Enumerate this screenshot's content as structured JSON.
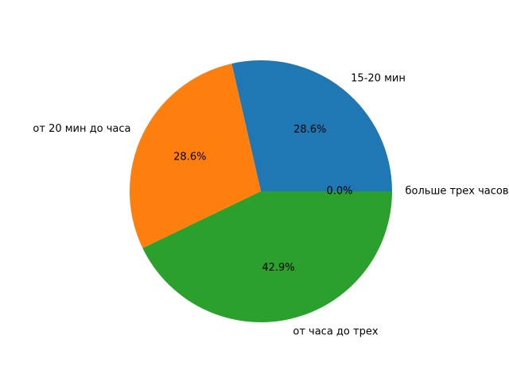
{
  "chart_data": {
    "type": "pie",
    "categories": [
      "15-20 мин",
      "от 20 мин до часа",
      "от часа до трех",
      "больше трех часов"
    ],
    "values": [
      2,
      2,
      3,
      0
    ],
    "percent_labels": [
      "28.6%",
      "28.6%",
      "42.9%",
      "0.0%"
    ],
    "colors": [
      "#1f77b4",
      "#ff7f0e",
      "#2ca02c",
      "#d62728"
    ],
    "start_angle_deg": 0,
    "direction": "counterclockwise",
    "title": "",
    "legend": "none"
  }
}
